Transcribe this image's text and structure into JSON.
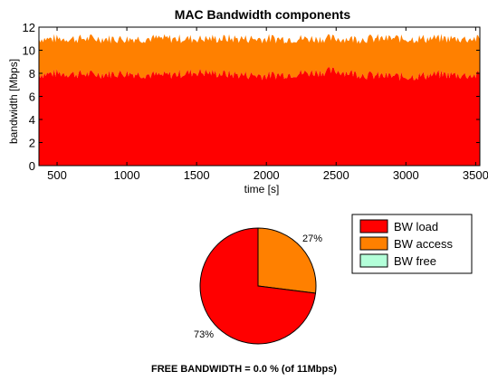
{
  "chart_data": [
    {
      "type": "area",
      "title": "MAC Bandwidth components",
      "xlabel": "time [s]",
      "ylabel": "bandwidth [Mbps]",
      "xlim": [
        370,
        3530
      ],
      "ylim": [
        0,
        12
      ],
      "x_ticks": [
        500,
        1000,
        1500,
        2000,
        2500,
        3000,
        3500
      ],
      "y_ticks": [
        0,
        2,
        4,
        6,
        8,
        10,
        12
      ],
      "stacked": true,
      "grid": false,
      "series": [
        {
          "name": "BW load",
          "color": "#ff0000",
          "x": [
            370,
            500,
            750,
            1000,
            1250,
            1500,
            1750,
            2000,
            2250,
            2500,
            2750,
            3000,
            3250,
            3500,
            3530
          ],
          "values": [
            7.9,
            8.0,
            7.9,
            8.0,
            7.8,
            8.1,
            7.9,
            7.8,
            8.0,
            8.2,
            7.8,
            7.7,
            7.9,
            7.8,
            7.9
          ]
        },
        {
          "name": "BW access",
          "color": "#ff8000",
          "x": [
            370,
            500,
            750,
            1000,
            1250,
            1500,
            1750,
            2000,
            2250,
            2500,
            2750,
            3000,
            3250,
            3500,
            3530
          ],
          "values": [
            3.1,
            3.0,
            3.1,
            3.0,
            3.2,
            2.9,
            3.1,
            3.2,
            3.0,
            2.8,
            3.2,
            3.3,
            3.1,
            3.2,
            3.1
          ]
        },
        {
          "name": "BW free",
          "color": "#b3ffd9",
          "x": [
            370,
            3530
          ],
          "values": [
            0,
            0
          ]
        }
      ]
    },
    {
      "type": "pie",
      "legend_position": "top-right",
      "slices": [
        {
          "label": "BW load",
          "value": 73,
          "display": "73%",
          "color": "#ff0000"
        },
        {
          "label": "BW access",
          "value": 27,
          "display": "27%",
          "color": "#ff8000"
        },
        {
          "label": "BW free",
          "value": 0,
          "display": "",
          "color": "#b3ffd9"
        }
      ]
    }
  ],
  "footer_text": "FREE BANDWIDTH = 0.0 % (of 11Mbps)"
}
